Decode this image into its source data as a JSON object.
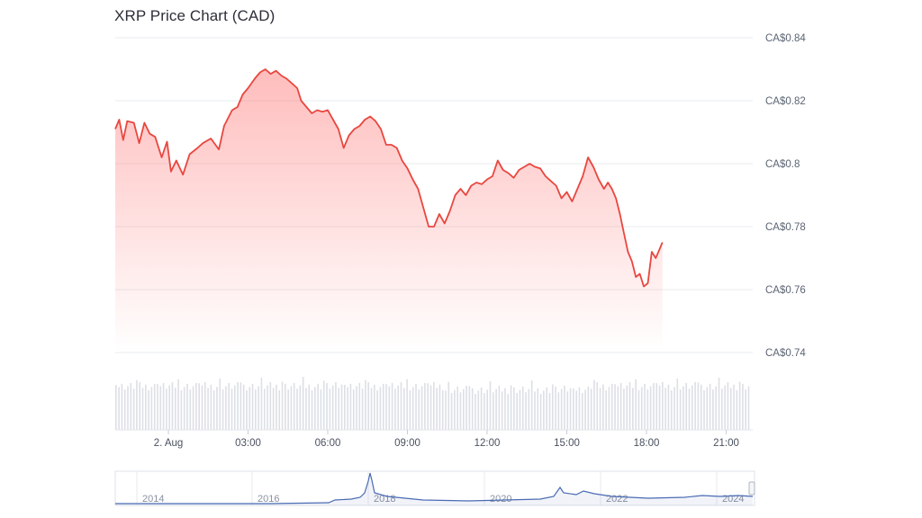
{
  "chart_data": {
    "type": "line",
    "title": "XRP Price Chart (CAD)",
    "xlabel": "",
    "ylabel": "",
    "ylim": [
      0.74,
      0.84
    ],
    "yticks": [
      {
        "value": 0.84,
        "label": "CA$0.84"
      },
      {
        "value": 0.82,
        "label": "CA$0.82"
      },
      {
        "value": 0.8,
        "label": "CA$0.8"
      },
      {
        "value": 0.78,
        "label": "CA$0.78"
      },
      {
        "value": 0.76,
        "label": "CA$0.76"
      },
      {
        "value": 0.74,
        "label": "CA$0.74"
      }
    ],
    "xlim_hours": [
      -2,
      22
    ],
    "xticks": [
      {
        "hour": 0,
        "label": "2. Aug"
      },
      {
        "hour": 3,
        "label": "03:00"
      },
      {
        "hour": 6,
        "label": "06:00"
      },
      {
        "hour": 9,
        "label": "09:00"
      },
      {
        "hour": 12,
        "label": "12:00"
      },
      {
        "hour": 15,
        "label": "15:00"
      },
      {
        "hour": 18,
        "label": "18:00"
      },
      {
        "hour": 21,
        "label": "21:00"
      }
    ],
    "series": [
      {
        "line_color": "#e8473f",
        "fill_color": "#ff6b6b",
        "points": [
          [
            -2.0,
            0.811
          ],
          [
            -1.85,
            0.814
          ],
          [
            -1.7,
            0.8075
          ],
          [
            -1.55,
            0.8135
          ],
          [
            -1.3,
            0.813
          ],
          [
            -1.1,
            0.8065
          ],
          [
            -0.9,
            0.813
          ],
          [
            -0.7,
            0.8095
          ],
          [
            -0.5,
            0.8085
          ],
          [
            -0.25,
            0.802
          ],
          [
            -0.05,
            0.807
          ],
          [
            0.1,
            0.7975
          ],
          [
            0.3,
            0.801
          ],
          [
            0.55,
            0.7965
          ],
          [
            0.8,
            0.803
          ],
          [
            1.1,
            0.805
          ],
          [
            1.3,
            0.8065
          ],
          [
            1.6,
            0.808
          ],
          [
            1.9,
            0.8045
          ],
          [
            2.1,
            0.812
          ],
          [
            2.4,
            0.817
          ],
          [
            2.6,
            0.818
          ],
          [
            2.8,
            0.822
          ],
          [
            3.0,
            0.824
          ],
          [
            3.25,
            0.827
          ],
          [
            3.45,
            0.829
          ],
          [
            3.65,
            0.83
          ],
          [
            3.85,
            0.8285
          ],
          [
            4.05,
            0.8295
          ],
          [
            4.25,
            0.828
          ],
          [
            4.45,
            0.827
          ],
          [
            4.65,
            0.8255
          ],
          [
            4.85,
            0.824
          ],
          [
            5.0,
            0.82
          ],
          [
            5.2,
            0.818
          ],
          [
            5.4,
            0.816
          ],
          [
            5.6,
            0.817
          ],
          [
            5.8,
            0.8165
          ],
          [
            6.0,
            0.817
          ],
          [
            6.2,
            0.814
          ],
          [
            6.4,
            0.811
          ],
          [
            6.6,
            0.805
          ],
          [
            6.8,
            0.809
          ],
          [
            7.0,
            0.811
          ],
          [
            7.2,
            0.812
          ],
          [
            7.4,
            0.814
          ],
          [
            7.6,
            0.815
          ],
          [
            7.8,
            0.8135
          ],
          [
            8.0,
            0.811
          ],
          [
            8.2,
            0.806
          ],
          [
            8.4,
            0.806
          ],
          [
            8.6,
            0.805
          ],
          [
            8.8,
            0.801
          ],
          [
            9.0,
            0.7985
          ],
          [
            9.2,
            0.795
          ],
          [
            9.4,
            0.792
          ],
          [
            9.6,
            0.786
          ],
          [
            9.8,
            0.78
          ],
          [
            10.0,
            0.78
          ],
          [
            10.2,
            0.784
          ],
          [
            10.4,
            0.781
          ],
          [
            10.6,
            0.785
          ],
          [
            10.8,
            0.79
          ],
          [
            11.0,
            0.792
          ],
          [
            11.2,
            0.79
          ],
          [
            11.4,
            0.793
          ],
          [
            11.6,
            0.794
          ],
          [
            11.8,
            0.7935
          ],
          [
            12.0,
            0.795
          ],
          [
            12.2,
            0.796
          ],
          [
            12.4,
            0.801
          ],
          [
            12.6,
            0.798
          ],
          [
            12.8,
            0.797
          ],
          [
            13.0,
            0.7955
          ],
          [
            13.2,
            0.798
          ],
          [
            13.4,
            0.799
          ],
          [
            13.6,
            0.8
          ],
          [
            13.8,
            0.799
          ],
          [
            14.0,
            0.7985
          ],
          [
            14.2,
            0.796
          ],
          [
            14.4,
            0.7945
          ],
          [
            14.6,
            0.793
          ],
          [
            14.8,
            0.789
          ],
          [
            15.0,
            0.791
          ],
          [
            15.2,
            0.788
          ],
          [
            15.4,
            0.792
          ],
          [
            15.6,
            0.796
          ],
          [
            15.8,
            0.802
          ],
          [
            16.0,
            0.799
          ],
          [
            16.2,
            0.795
          ],
          [
            16.4,
            0.792
          ],
          [
            16.55,
            0.794
          ],
          [
            16.7,
            0.792
          ],
          [
            16.85,
            0.789
          ],
          [
            17.0,
            0.784
          ],
          [
            17.15,
            0.778
          ],
          [
            17.3,
            0.772
          ],
          [
            17.45,
            0.769
          ],
          [
            17.6,
            0.764
          ],
          [
            17.75,
            0.765
          ],
          [
            17.9,
            0.761
          ],
          [
            18.05,
            0.762
          ],
          [
            18.2,
            0.772
          ],
          [
            18.35,
            0.77
          ],
          [
            18.5,
            0.773
          ],
          [
            18.6,
            0.775
          ]
        ]
      }
    ],
    "volume_bars_count": 214,
    "navigator": {
      "labels": [
        "2014",
        "2016",
        "2018",
        "2020",
        "2022",
        "2024"
      ],
      "line_color": "#4a6bb3"
    },
    "grid": true,
    "legend": "none"
  }
}
